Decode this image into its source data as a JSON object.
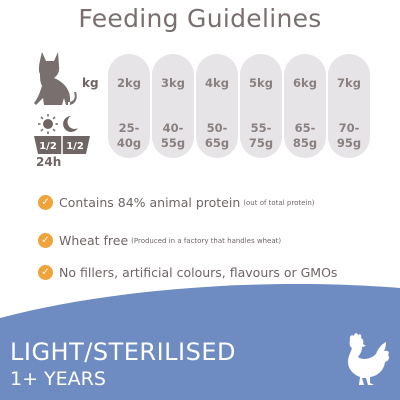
{
  "title": "Feeding Guidelines",
  "icons": {
    "cat": "cat-silhouette-icon",
    "daily": "sun-moon-half-portion-icon",
    "check": "check-circle-icon",
    "chicken": "chicken-icon"
  },
  "labels": {
    "kg": "kg",
    "period": "24h",
    "half": "1/2"
  },
  "table": [
    {
      "weight": "2kg",
      "amount_line1": "25-",
      "amount_line2": "40g"
    },
    {
      "weight": "3kg",
      "amount_line1": "40-",
      "amount_line2": "55g"
    },
    {
      "weight": "4kg",
      "amount_line1": "50-",
      "amount_line2": "65g"
    },
    {
      "weight": "5kg",
      "amount_line1": "55-",
      "amount_line2": "75g"
    },
    {
      "weight": "6kg",
      "amount_line1": "65-",
      "amount_line2": "85g"
    },
    {
      "weight": "7kg",
      "amount_line1": "70-",
      "amount_line2": "95g"
    }
  ],
  "features": [
    {
      "text": "Contains 84% animal protein",
      "note": "(out of total protein)"
    },
    {
      "text": "Wheat free",
      "note": "(Produced in a factory that handles wheat)"
    },
    {
      "text": "No fillers, artificial colours, flavours or GMOs",
      "note": ""
    }
  ],
  "check_symbol": "✓",
  "product": {
    "line1": "LIGHT/STERILISED",
    "line2": "1+ YEARS"
  },
  "colors": {
    "band": "#6f8cc2",
    "accent": "#f0a33b",
    "pill": "#e6e4e6",
    "text": "#6f6565"
  }
}
